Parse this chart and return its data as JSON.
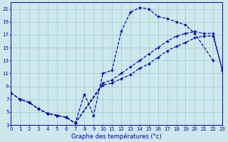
{
  "bg_color": "#cce8ec",
  "grid_color": "#aacccc",
  "line_color": "#0000aa",
  "xlabel": "Graphe des températures (°c)",
  "xlim": [
    0,
    23
  ],
  "ylim": [
    3,
    22
  ],
  "xticks": [
    0,
    1,
    2,
    3,
    4,
    5,
    6,
    7,
    8,
    9,
    10,
    11,
    12,
    13,
    14,
    15,
    16,
    17,
    18,
    19,
    20,
    21,
    22,
    23
  ],
  "yticks": [
    3,
    5,
    7,
    9,
    11,
    13,
    15,
    17,
    19,
    21
  ],
  "line1_x": [
    0,
    1,
    2,
    3,
    4,
    5,
    6,
    7,
    8,
    9,
    10,
    11,
    12,
    13,
    14,
    15,
    16,
    17,
    18,
    19,
    20,
    22
  ],
  "line1_y": [
    8.0,
    7.0,
    6.5,
    5.5,
    4.8,
    4.5,
    4.2,
    3.3,
    7.8,
    4.5,
    11.0,
    11.5,
    17.5,
    20.5,
    21.2,
    21.0,
    19.8,
    19.5,
    19.0,
    18.5,
    17.2,
    13.0
  ],
  "line2_x": [
    0,
    1,
    2,
    3,
    4,
    5,
    6,
    7,
    10,
    11,
    12,
    13,
    14,
    15,
    16,
    17,
    18,
    19,
    20,
    21,
    22,
    23
  ],
  "line2_y": [
    8.0,
    7.0,
    6.5,
    5.5,
    4.8,
    4.5,
    4.2,
    3.3,
    9.5,
    10.0,
    11.0,
    12.0,
    13.0,
    14.0,
    15.0,
    16.0,
    16.8,
    17.2,
    17.5,
    17.2,
    17.2,
    11.5
  ],
  "line3_x": [
    0,
    1,
    2,
    3,
    4,
    5,
    6,
    7,
    10,
    11,
    12,
    13,
    14,
    15,
    16,
    17,
    18,
    19,
    20,
    21,
    22,
    23
  ],
  "line3_y": [
    8.0,
    7.0,
    6.5,
    5.5,
    4.8,
    4.5,
    4.2,
    3.3,
    9.2,
    9.5,
    10.2,
    10.8,
    11.8,
    12.5,
    13.5,
    14.5,
    15.2,
    15.8,
    16.5,
    16.8,
    16.8,
    11.5
  ]
}
